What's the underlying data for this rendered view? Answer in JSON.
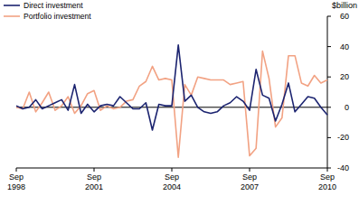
{
  "chart_data": {
    "type": "line",
    "y_label": "$billion",
    "categories": [
      "Sep 1998",
      null,
      null,
      null,
      null,
      null,
      null,
      null,
      null,
      null,
      null,
      null,
      "Sep 2001",
      null,
      null,
      null,
      null,
      null,
      null,
      null,
      null,
      null,
      null,
      null,
      "Sep 2004",
      null,
      null,
      null,
      null,
      null,
      null,
      null,
      null,
      null,
      null,
      null,
      "Sep 2007",
      null,
      null,
      null,
      null,
      null,
      null,
      null,
      null,
      null,
      null,
      null,
      "Sep 2010"
    ],
    "series": [
      {
        "name": "Direct investment",
        "color": "#1c2470",
        "values": [
          1,
          -1,
          0,
          5,
          -1,
          1,
          3,
          5,
          -2,
          15,
          -4,
          2,
          -3,
          1,
          2,
          1,
          7,
          3,
          -1,
          -1,
          3,
          -15,
          2,
          1,
          1,
          41,
          4,
          8,
          0,
          -3,
          -4,
          -3,
          1,
          3,
          7,
          4,
          -2,
          25,
          8,
          6,
          -9,
          2,
          16,
          -3,
          2,
          7,
          6,
          0,
          -5
        ]
      },
      {
        "name": "Portfolio investment",
        "color": "#f2a283",
        "values": [
          0,
          -1,
          10,
          -3,
          3,
          10,
          -2,
          1,
          7,
          -4,
          1,
          9,
          11,
          -2,
          1,
          -1,
          0,
          4,
          5,
          14,
          17,
          27,
          18,
          19,
          18,
          -33,
          15,
          8,
          20,
          19,
          18,
          18,
          18,
          15,
          16,
          17,
          -32,
          -27,
          37,
          19,
          -13,
          -7,
          34,
          34,
          16,
          14,
          21,
          16,
          18
        ]
      }
    ],
    "ylim": [
      -40,
      60
    ],
    "yticks": [
      -40,
      -20,
      0,
      20,
      40,
      60
    ],
    "grid": false,
    "legend": "top-left"
  }
}
